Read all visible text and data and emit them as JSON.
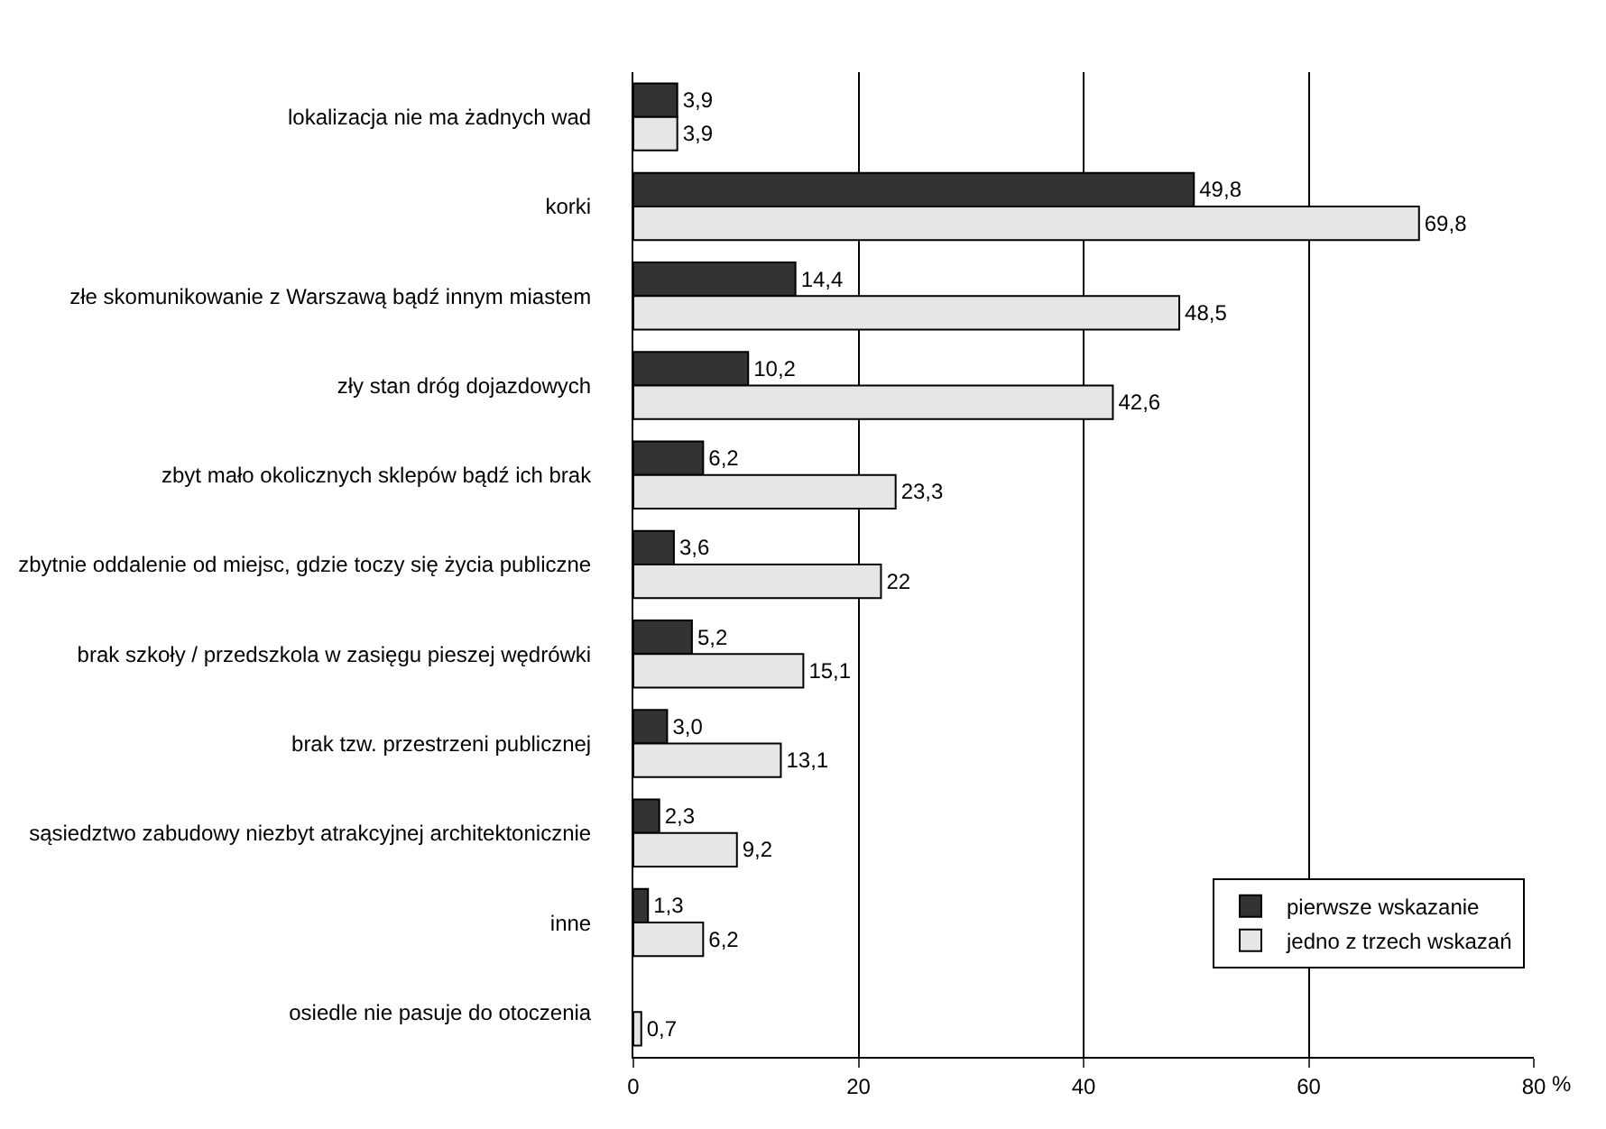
{
  "chart_data": {
    "type": "bar",
    "orientation": "horizontal",
    "xlabel": "%",
    "categories": [
      "lokalizacja nie ma żadnych wad",
      "korki",
      "złe skomunikowanie z Warszawą bądź innym miastem",
      "zły stan dróg dojazdowych",
      "zbyt mało okolicznych sklepów bądź ich brak",
      "zbytnie oddalenie od miejsc, gdzie toczy się życia publiczne",
      "brak szkoły / przedszkola w zasięgu pieszej wędrówki",
      "brak tzw. przestrzeni publicznej",
      "sąsiedztwo zabudowy niezbyt atrakcyjnej architektonicznie",
      "inne",
      "osiedle nie pasuje do otoczenia"
    ],
    "series": [
      {
        "name": "pierwsze wskazanie",
        "color": "#333333",
        "values": [
          3.9,
          49.8,
          14.4,
          10.2,
          6.2,
          3.6,
          5.2,
          3.0,
          2.3,
          1.3,
          null
        ],
        "value_labels": [
          "3,9",
          "49,8",
          "14,4",
          "10,2",
          "6,2",
          "3,6",
          "5,2",
          "3,0",
          "2,3",
          "1,3",
          null
        ]
      },
      {
        "name": "jedno z trzech wskazań",
        "color": "#e6e6e6",
        "values": [
          3.9,
          69.8,
          48.5,
          42.6,
          23.3,
          22,
          15.1,
          13.1,
          9.2,
          6.2,
          0.7
        ],
        "value_labels": [
          "3,9",
          "69,8",
          "48,5",
          "42,6",
          "23,3",
          "22",
          "15,1",
          "13,1",
          "9,2",
          "6,2",
          "0,7"
        ]
      }
    ],
    "xlim": [
      0,
      80
    ],
    "xticks": [
      0,
      20,
      40,
      60,
      80
    ],
    "grid": "x",
    "legend": "bottom right"
  }
}
